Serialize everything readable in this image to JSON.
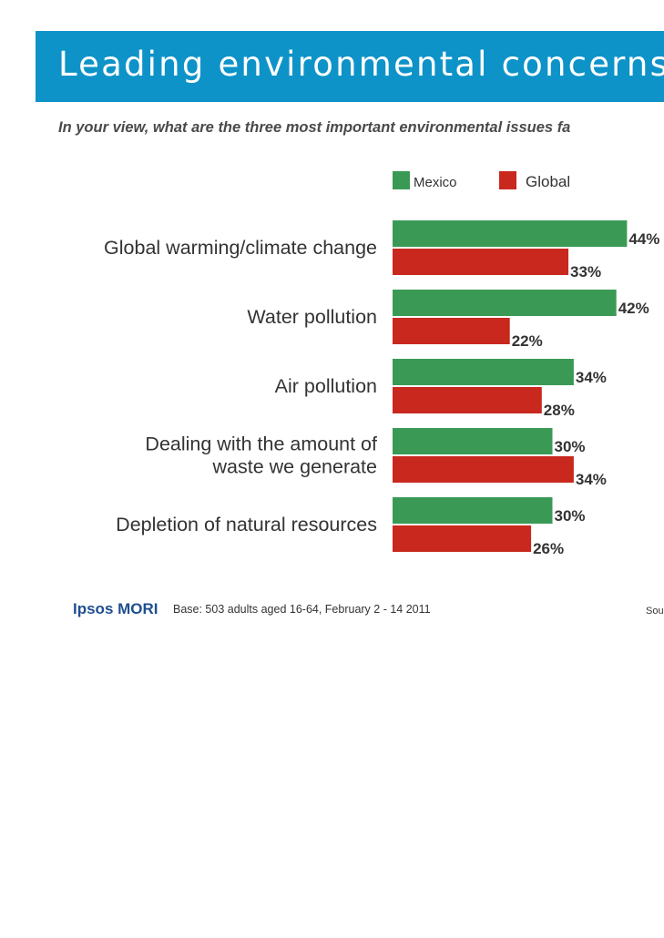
{
  "header": {
    "title": "Leading environmental concerns",
    "subtitle": "In your view, what are the three most important environmental issues fa"
  },
  "chart_data": {
    "type": "bar",
    "orientation": "horizontal",
    "categories": [
      [
        "Global warming/climate change"
      ],
      [
        "Water pollution"
      ],
      [
        "Air pollution"
      ],
      [
        "Dealing with the amount of",
        "waste we generate"
      ],
      [
        "Depletion of natural resources"
      ]
    ],
    "series": [
      {
        "name": "Mexico",
        "color": "#3a9a55",
        "values": [
          44,
          42,
          34,
          30,
          30
        ]
      },
      {
        "name": "Global",
        "color": "#c8281e",
        "values": [
          33,
          22,
          28,
          34,
          26
        ]
      }
    ],
    "value_labels": [
      [
        "44%",
        "42%",
        "34%",
        "30%",
        "30%"
      ],
      [
        "33%",
        "22%",
        "28%",
        "34%",
        "26%"
      ]
    ],
    "legend_position": "top",
    "grid": false
  },
  "footer": {
    "logo_text": "Ipsos MORI",
    "base_note": "Base: 503 adults aged 16-64, February 2 - 14 2011",
    "source_text": "Sou"
  }
}
